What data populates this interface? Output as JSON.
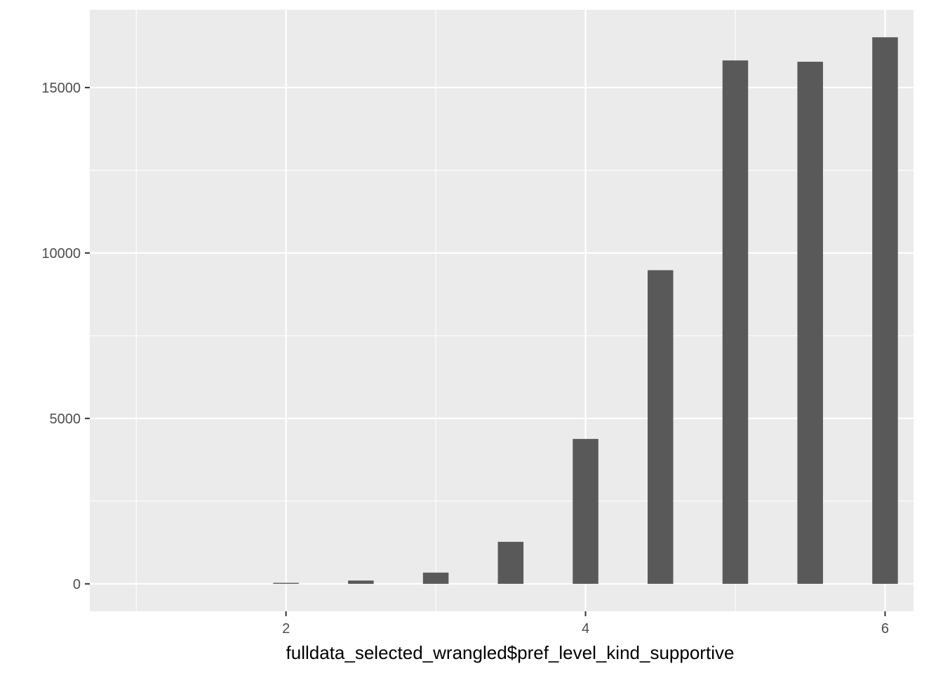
{
  "chart_data": {
    "type": "bar",
    "title": "",
    "xlabel": "fulldata_selected_wrangled$pref_level_kind_supportive",
    "ylabel": "",
    "x": [
      1.0,
      1.5,
      2.0,
      2.5,
      3.0,
      3.5,
      4.0,
      4.5,
      5.0,
      5.5,
      6.0
    ],
    "values": [
      0,
      0,
      30,
      100,
      340,
      1270,
      4380,
      9480,
      15820,
      15780,
      16520
    ],
    "xlim": [
      0.69,
      6.19
    ],
    "ylim": [
      -830,
      17350
    ],
    "xticks": [
      2,
      4,
      6
    ],
    "yticks": [
      0,
      5000,
      10000,
      15000
    ],
    "grid": true,
    "colors": {
      "panel": "#ebebeb",
      "bar": "#595959",
      "grid": "#ffffff"
    }
  }
}
